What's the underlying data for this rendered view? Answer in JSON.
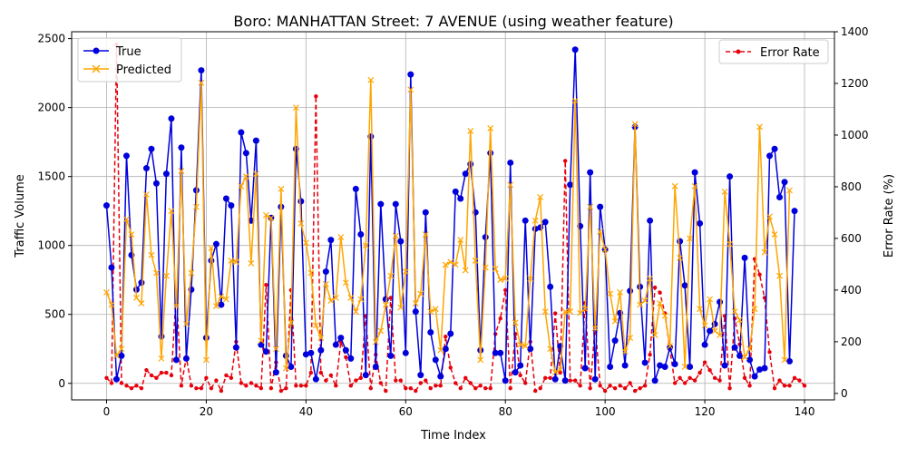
{
  "chart_data": {
    "type": "line",
    "title": "Boro: MANHATTAN Street: 7 AVENUE (using weather feature)",
    "xlabel": "Time Index",
    "ylabel": "Traffic Volume",
    "y2label": "Error Rate (%)",
    "xlim": [
      -7,
      146
    ],
    "ylim": [
      -120,
      2550
    ],
    "y2lim": [
      -25,
      1400
    ],
    "x_ticks": [
      0,
      20,
      40,
      60,
      80,
      100,
      120,
      140
    ],
    "y_ticks": [
      0,
      500,
      1000,
      1500,
      2000,
      2500
    ],
    "y2_ticks": [
      0,
      200,
      400,
      600,
      800,
      1000,
      1200,
      1400
    ],
    "grid": true,
    "legend_left": {
      "placement": "upper-left",
      "entries": [
        "True",
        "Predicted"
      ]
    },
    "legend_right": {
      "placement": "upper-right",
      "entries": [
        "Error Rate"
      ]
    },
    "colors": {
      "true": "#0000dd",
      "predicted": "#ffa500",
      "error": "#e8000b"
    },
    "series": [
      {
        "name": "True",
        "axis": "left",
        "values": [
          1290,
          840,
          30,
          200,
          1650,
          930,
          680,
          730,
          1560,
          1700,
          1450,
          340,
          1520,
          1920,
          170,
          1710,
          180,
          680,
          1400,
          2270,
          330,
          890,
          1010,
          570,
          1340,
          1290,
          260,
          1820,
          1670,
          1180,
          1760,
          280,
          230,
          1200,
          80,
          1280,
          200,
          120,
          1700,
          1320,
          210,
          220,
          30,
          240,
          810,
          1040,
          280,
          330,
          240,
          180,
          1410,
          1080,
          60,
          1790,
          120,
          1300,
          610,
          200,
          1300,
          1030,
          220,
          2240,
          520,
          60,
          1240,
          370,
          170,
          50,
          250,
          360,
          1390,
          1340,
          1520,
          1590,
          1240,
          240,
          1060,
          1670,
          220,
          220,
          20,
          1600,
          80,
          130,
          1180,
          250,
          1120,
          1130,
          1170,
          700,
          30,
          270,
          20,
          1440,
          2420,
          1140,
          110,
          1530,
          30,
          1280,
          970,
          120,
          310,
          510,
          130,
          670,
          1860,
          700,
          150,
          1180,
          20,
          130,
          120,
          260,
          140,
          1030,
          710,
          120,
          1530,
          1160,
          280,
          380,
          430,
          590,
          130,
          1500,
          260,
          200,
          910,
          170,
          50,
          100,
          110,
          1650,
          1700,
          1350,
          1460,
          160,
          1250
        ]
      },
      {
        "name": "Predicted",
        "axis": "left",
        "values": [
          660,
          570,
          200,
          250,
          1190,
          1080,
          620,
          580,
          1370,
          930,
          800,
          180,
          780,
          1250,
          560,
          1540,
          430,
          800,
          1280,
          2180,
          170,
          980,
          560,
          630,
          610,
          890,
          880,
          1430,
          1500,
          870,
          1520,
          310,
          1220,
          1200,
          250,
          1410,
          110,
          440,
          2000,
          1160,
          1020,
          800,
          420,
          330,
          720,
          600,
          620,
          1060,
          730,
          620,
          520,
          610,
          1000,
          2200,
          300,
          380,
          570,
          780,
          1070,
          550,
          810,
          2130,
          580,
          650,
          1080,
          520,
          540,
          240,
          860,
          880,
          860,
          1040,
          820,
          1830,
          890,
          170,
          840,
          1850,
          830,
          750,
          760,
          1440,
          440,
          280,
          270,
          760,
          1180,
          1350,
          520,
          250,
          80,
          100,
          520,
          520,
          2050,
          510,
          540,
          1280,
          400,
          1100,
          970,
          650,
          450,
          660,
          230,
          330,
          1880,
          570,
          600,
          760,
          350,
          580,
          490,
          270,
          1430,
          910,
          120,
          1050,
          1430,
          540,
          420,
          610,
          380,
          350,
          1390,
          1010,
          520,
          460,
          190,
          250,
          540,
          1860,
          950,
          1210,
          1080,
          780,
          170,
          1400
        ]
      },
      {
        "name": "Error Rate",
        "axis": "right",
        "values": [
          60,
          40,
          1350,
          40,
          30,
          20,
          30,
          20,
          90,
          70,
          60,
          80,
          80,
          70,
          390,
          30,
          140,
          30,
          20,
          20,
          60,
          20,
          50,
          10,
          70,
          60,
          200,
          40,
          30,
          40,
          30,
          20,
          420,
          20,
          120,
          10,
          20,
          400,
          30,
          30,
          30,
          80,
          1150,
          80,
          50,
          70,
          30,
          200,
          140,
          30,
          50,
          60,
          300,
          20,
          150,
          40,
          10,
          370,
          50,
          50,
          20,
          20,
          10,
          40,
          50,
          20,
          30,
          30,
          220,
          100,
          40,
          20,
          60,
          40,
          20,
          30,
          20,
          20,
          230,
          290,
          400,
          20,
          230,
          70,
          40,
          200,
          10,
          20,
          60,
          60,
          310,
          80,
          900,
          50,
          50,
          30,
          350,
          20,
          260,
          30,
          10,
          30,
          20,
          30,
          20,
          40,
          10,
          20,
          30,
          150,
          410,
          390,
          310,
          170,
          40,
          60,
          40,
          60,
          50,
          80,
          120,
          90,
          60,
          50,
          300,
          20,
          290,
          190,
          60,
          30,
          520,
          460,
          370,
          160,
          20,
          50,
          30,
          30,
          60,
          50,
          30
        ]
      }
    ]
  }
}
